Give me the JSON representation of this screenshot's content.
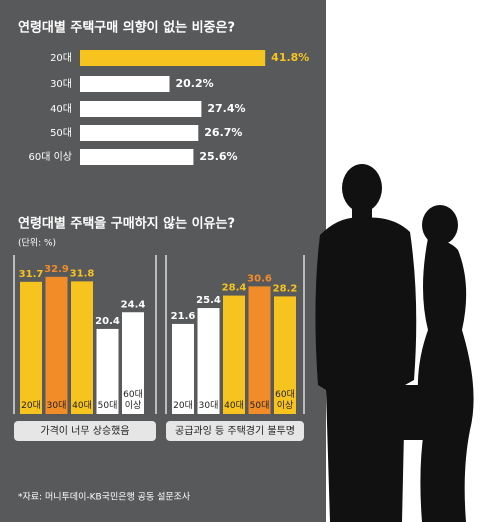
{
  "chart_data": [
    {
      "type": "hbar",
      "title": "연령대별 주택구매 의향이 없는 비중은?",
      "categories": [
        "20대",
        "30대",
        "40대",
        "50대",
        "60대 이상"
      ],
      "values": [
        41.8,
        20.2,
        27.4,
        26.7,
        25.6
      ],
      "value_labels": [
        "41.8%",
        "20.2%",
        "27.4%",
        "26.7%",
        "25.6%"
      ],
      "colors": [
        "#f7c41f",
        "#ffffff",
        "#ffffff",
        "#ffffff",
        "#ffffff"
      ]
    },
    {
      "type": "bar",
      "title": "연령대별 주택을 구매하지 않는 이유는?",
      "subtitle": "(단위: %)",
      "categories": [
        "20대",
        "30대",
        "40대",
        "50대",
        "60대 이상"
      ],
      "series": [
        {
          "name": "가격이 너무 상승했음",
          "values": [
            31.7,
            32.9,
            31.8,
            20.4,
            24.4
          ],
          "colors": [
            "#f7c41f",
            "#f28c28",
            "#f7c41f",
            "#ffffff",
            "#ffffff"
          ]
        },
        {
          "name": "공급과잉 등 주택경기 불투명",
          "values": [
            21.6,
            25.4,
            28.4,
            30.6,
            28.2
          ],
          "colors": [
            "#ffffff",
            "#ffffff",
            "#f7c41f",
            "#f28c28",
            "#f7c41f"
          ]
        }
      ]
    }
  ],
  "source": "*자료: 머니투데이-KB국민은행 공동 설문조사"
}
